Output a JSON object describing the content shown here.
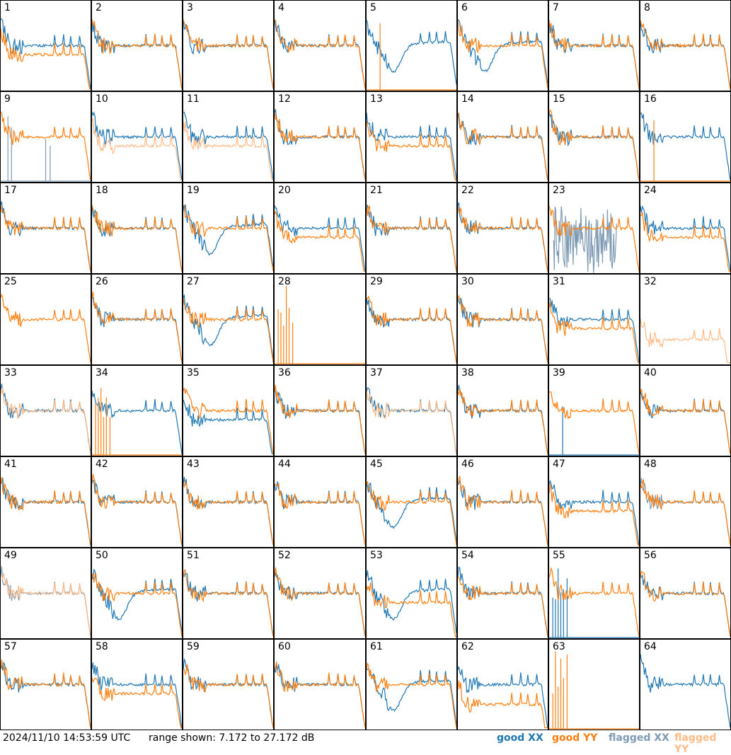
{
  "footer": {
    "timestamp": "2024/11/10 14:53:59 UTC",
    "range_text": "range shown: 7.172 to 27.172 dB"
  },
  "legend": {
    "good_xx": "good XX",
    "good_yy": "good YY",
    "flagged_xx": "flagged XX",
    "flagged_yy": "flagged YY"
  },
  "colors": {
    "good_xx": "#1f77b4",
    "good_yy": "#ff7f0e",
    "flagged_xx": "#7f9bb3",
    "flagged_yy": "#ffbb88"
  },
  "chart_data": {
    "type": "line",
    "grid_rows": 8,
    "grid_cols": 8,
    "ylim": [
      7.172,
      27.172
    ],
    "y_unit": "dB",
    "panels": [
      {
        "id": 1,
        "xx": "good",
        "yy": "good",
        "xx_shape": "normal",
        "yy_shape": "low"
      },
      {
        "id": 2,
        "xx": "good",
        "yy": "good",
        "xx_shape": "normal",
        "yy_shape": "normal"
      },
      {
        "id": 3,
        "xx": "good",
        "yy": "good",
        "xx_shape": "normal",
        "yy_shape": "normal"
      },
      {
        "id": 4,
        "xx": "good",
        "yy": "good",
        "xx_shape": "normal",
        "yy_shape": "normal"
      },
      {
        "id": 5,
        "xx": "good",
        "yy": "good",
        "xx_shape": "dip",
        "yy_shape": "spike"
      },
      {
        "id": 6,
        "xx": "good",
        "yy": "good",
        "xx_shape": "dip",
        "yy_shape": "normal"
      },
      {
        "id": 7,
        "xx": "good",
        "yy": "good",
        "xx_shape": "normal",
        "yy_shape": "normal"
      },
      {
        "id": 8,
        "xx": "good",
        "yy": "good",
        "xx_shape": "normal",
        "yy_shape": "normal"
      },
      {
        "id": 9,
        "xx": "flagged",
        "yy": "good",
        "xx_shape": "spiky",
        "yy_shape": "normal"
      },
      {
        "id": 10,
        "xx": "good",
        "yy": "flagged",
        "xx_shape": "normal",
        "yy_shape": "low"
      },
      {
        "id": 11,
        "xx": "good",
        "yy": "flagged",
        "xx_shape": "normal",
        "yy_shape": "low"
      },
      {
        "id": 12,
        "xx": "good",
        "yy": "good",
        "xx_shape": "normal",
        "yy_shape": "normal"
      },
      {
        "id": 13,
        "xx": "good",
        "yy": "good",
        "xx_shape": "normal",
        "yy_shape": "low"
      },
      {
        "id": 14,
        "xx": "good",
        "yy": "good",
        "xx_shape": "normal",
        "yy_shape": "normal"
      },
      {
        "id": 15,
        "xx": "good",
        "yy": "good",
        "xx_shape": "normal",
        "yy_shape": "normal"
      },
      {
        "id": 16,
        "xx": "good",
        "yy": "good",
        "xx_shape": "normal",
        "yy_shape": "spike"
      },
      {
        "id": 17,
        "xx": "good",
        "yy": "good",
        "xx_shape": "normal",
        "yy_shape": "normal"
      },
      {
        "id": 18,
        "xx": "good",
        "yy": "good",
        "xx_shape": "normal",
        "yy_shape": "normal"
      },
      {
        "id": 19,
        "xx": "good",
        "yy": "good",
        "xx_shape": "dip",
        "yy_shape": "normal"
      },
      {
        "id": 20,
        "xx": "good",
        "yy": "good",
        "xx_shape": "normal",
        "yy_shape": "low"
      },
      {
        "id": 21,
        "xx": "good",
        "yy": "good",
        "xx_shape": "normal",
        "yy_shape": "normal"
      },
      {
        "id": 22,
        "xx": "good",
        "yy": "good",
        "xx_shape": "normal",
        "yy_shape": "normal"
      },
      {
        "id": 23,
        "xx": "flagged",
        "yy": "good",
        "xx_shape": "noisy",
        "yy_shape": "normal"
      },
      {
        "id": 24,
        "xx": "good",
        "yy": "good",
        "xx_shape": "normal",
        "yy_shape": "low"
      },
      {
        "id": 25,
        "xx": "none",
        "yy": "good",
        "xx_shape": "none",
        "yy_shape": "normal"
      },
      {
        "id": 26,
        "xx": "good",
        "yy": "good",
        "xx_shape": "normal",
        "yy_shape": "normal"
      },
      {
        "id": 27,
        "xx": "good",
        "yy": "good",
        "xx_shape": "dip",
        "yy_shape": "normal"
      },
      {
        "id": 28,
        "xx": "none",
        "yy": "good",
        "xx_shape": "none",
        "yy_shape": "burst"
      },
      {
        "id": 29,
        "xx": "good",
        "yy": "good",
        "xx_shape": "normal",
        "yy_shape": "normal"
      },
      {
        "id": 30,
        "xx": "good",
        "yy": "good",
        "xx_shape": "normal",
        "yy_shape": "normal"
      },
      {
        "id": 31,
        "xx": "good",
        "yy": "good",
        "xx_shape": "normal",
        "yy_shape": "low"
      },
      {
        "id": 32,
        "xx": "none",
        "yy": "flagged",
        "xx_shape": "none",
        "yy_shape": "lowspiky"
      },
      {
        "id": 33,
        "xx": "good",
        "yy": "flagged",
        "xx_shape": "normal",
        "yy_shape": "normal"
      },
      {
        "id": 34,
        "xx": "good",
        "yy": "good",
        "xx_shape": "normal",
        "yy_shape": "burst"
      },
      {
        "id": 35,
        "xx": "good",
        "yy": "good",
        "xx_shape": "low",
        "yy_shape": "normal"
      },
      {
        "id": 36,
        "xx": "good",
        "yy": "good",
        "xx_shape": "normal",
        "yy_shape": "normal"
      },
      {
        "id": 37,
        "xx": "good",
        "yy": "flagged",
        "xx_shape": "normal",
        "yy_shape": "normal"
      },
      {
        "id": 38,
        "xx": "good",
        "yy": "good",
        "xx_shape": "normal",
        "yy_shape": "normal"
      },
      {
        "id": 39,
        "xx": "good",
        "yy": "good",
        "xx_shape": "spike",
        "yy_shape": "normal"
      },
      {
        "id": 40,
        "xx": "good",
        "yy": "good",
        "xx_shape": "normal",
        "yy_shape": "normal"
      },
      {
        "id": 41,
        "xx": "good",
        "yy": "good",
        "xx_shape": "normal",
        "yy_shape": "normal"
      },
      {
        "id": 42,
        "xx": "good",
        "yy": "good",
        "xx_shape": "normal",
        "yy_shape": "normal"
      },
      {
        "id": 43,
        "xx": "good",
        "yy": "good",
        "xx_shape": "normal",
        "yy_shape": "normal"
      },
      {
        "id": 44,
        "xx": "good",
        "yy": "good",
        "xx_shape": "normal",
        "yy_shape": "normal"
      },
      {
        "id": 45,
        "xx": "good",
        "yy": "good",
        "xx_shape": "dip",
        "yy_shape": "normal"
      },
      {
        "id": 46,
        "xx": "good",
        "yy": "good",
        "xx_shape": "normal",
        "yy_shape": "normal"
      },
      {
        "id": 47,
        "xx": "good",
        "yy": "good",
        "xx_shape": "normal",
        "yy_shape": "low"
      },
      {
        "id": 48,
        "xx": "flagged",
        "yy": "good",
        "xx_shape": "normal",
        "yy_shape": "normal"
      },
      {
        "id": 49,
        "xx": "flagged",
        "yy": "flagged",
        "xx_shape": "normal",
        "yy_shape": "normal"
      },
      {
        "id": 50,
        "xx": "good",
        "yy": "good",
        "xx_shape": "dip",
        "yy_shape": "normal"
      },
      {
        "id": 51,
        "xx": "good",
        "yy": "good",
        "xx_shape": "normal",
        "yy_shape": "normal"
      },
      {
        "id": 52,
        "xx": "good",
        "yy": "good",
        "xx_shape": "normal",
        "yy_shape": "normal"
      },
      {
        "id": 53,
        "xx": "good",
        "yy": "good",
        "xx_shape": "dip",
        "yy_shape": "low"
      },
      {
        "id": 54,
        "xx": "good",
        "yy": "good",
        "xx_shape": "normal",
        "yy_shape": "normal"
      },
      {
        "id": 55,
        "xx": "good",
        "yy": "good",
        "xx_shape": "burst",
        "yy_shape": "normal"
      },
      {
        "id": 56,
        "xx": "good",
        "yy": "good",
        "xx_shape": "normal",
        "yy_shape": "normal"
      },
      {
        "id": 57,
        "xx": "good",
        "yy": "good",
        "xx_shape": "normal",
        "yy_shape": "normal"
      },
      {
        "id": 58,
        "xx": "good",
        "yy": "good",
        "xx_shape": "normal",
        "yy_shape": "low"
      },
      {
        "id": 59,
        "xx": "good",
        "yy": "good",
        "xx_shape": "normal",
        "yy_shape": "normal"
      },
      {
        "id": 60,
        "xx": "good",
        "yy": "good",
        "xx_shape": "normal",
        "yy_shape": "normal"
      },
      {
        "id": 61,
        "xx": "good",
        "yy": "good",
        "xx_shape": "dip",
        "yy_shape": "normal"
      },
      {
        "id": 62,
        "xx": "good",
        "yy": "good",
        "xx_shape": "normal",
        "yy_shape": "lowspiky"
      },
      {
        "id": 63,
        "xx": "none",
        "yy": "good",
        "xx_shape": "none",
        "yy_shape": "burst"
      },
      {
        "id": 64,
        "xx": "good",
        "yy": "none",
        "xx_shape": "normal",
        "yy_shape": "none"
      }
    ]
  }
}
